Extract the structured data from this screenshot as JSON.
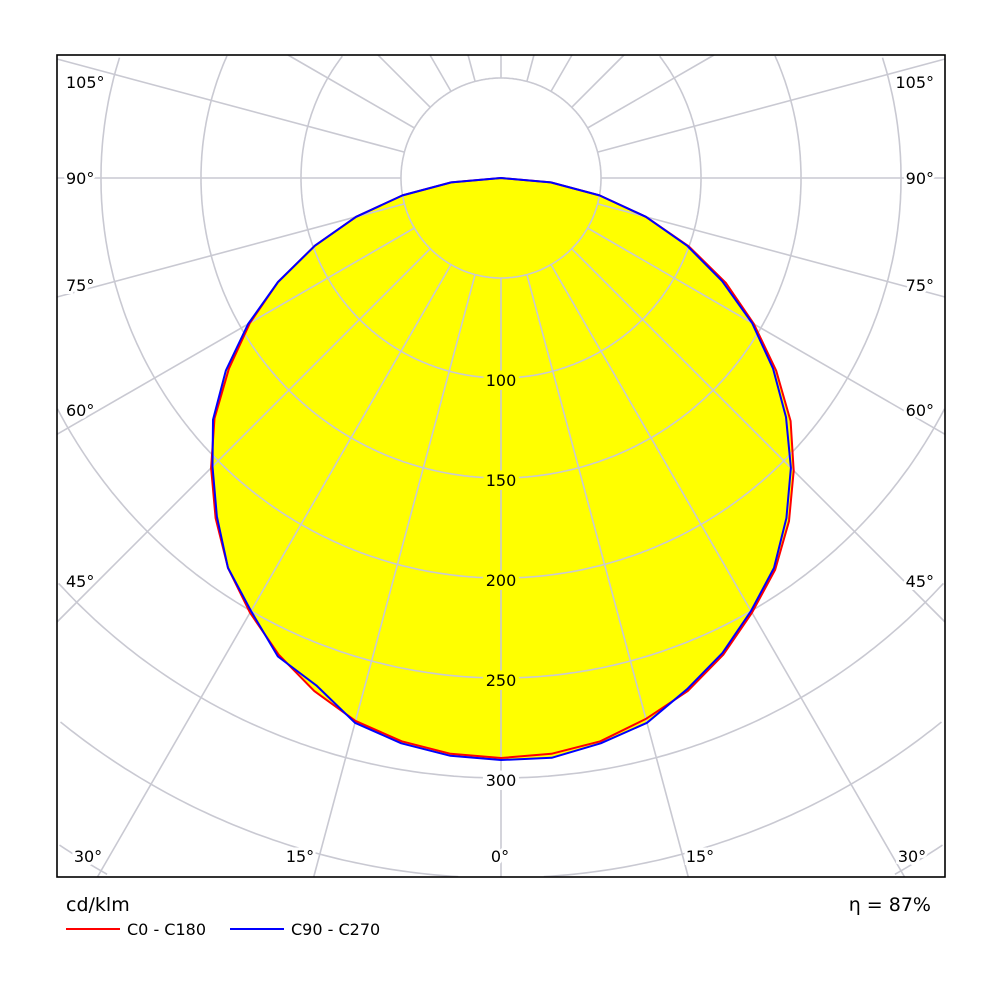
{
  "chart_data": {
    "type": "polar",
    "unit_label": "cd/klm",
    "efficiency_label": "η = 87%",
    "radial_ticks": [
      100,
      150,
      200,
      250,
      300
    ],
    "radial_grid_step": 50,
    "angle_grid_step_deg": 15,
    "angle_labels": [
      "105°",
      "90°",
      "75°",
      "60°",
      "45°",
      "30°",
      "15°",
      "0°"
    ],
    "angles_deg": [
      0,
      5,
      10,
      15,
      20,
      25,
      30,
      35,
      40,
      45,
      50,
      55,
      60,
      65,
      70,
      75,
      80,
      85,
      90
    ],
    "series": [
      {
        "name": "C0 - C180",
        "color": "#ff0000",
        "right": [
          290,
          289,
          286,
          280,
          273,
          263,
          251,
          239,
          224,
          207,
          189,
          168,
          146,
          124,
          100,
          75,
          50,
          25,
          0
        ],
        "left": [
          290,
          289,
          286,
          281,
          273,
          263,
          251,
          238,
          222,
          205,
          187,
          166,
          145,
          123,
          99,
          75,
          50,
          25,
          0
        ]
      },
      {
        "name": "C90 - C270",
        "color": "#0000ff",
        "right": [
          291,
          291,
          287,
          282,
          272,
          262,
          250,
          238,
          222,
          205,
          186,
          166,
          145,
          122,
          99,
          75,
          50,
          25,
          0
        ],
        "left": [
          291,
          290,
          287,
          282,
          270,
          264,
          250,
          238,
          221,
          204,
          188,
          168,
          146,
          123,
          99,
          75,
          50,
          25,
          0
        ]
      }
    ],
    "fill_color": "#ffff00",
    "grid": true
  }
}
